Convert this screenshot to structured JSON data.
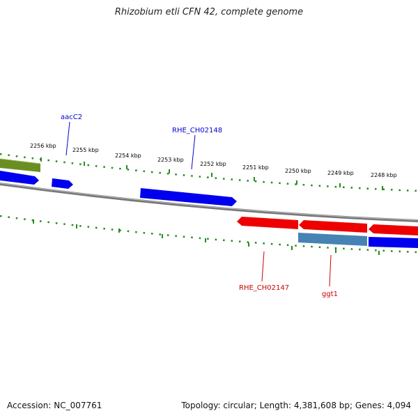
{
  "title": "Rhizobium etli CFN 42, complete genome",
  "footer": {
    "accession": "Accession: NC_007761",
    "stats": "Topology: circular; Length: 4,381,608 bp; Genes: 4,094"
  },
  "ticks": [
    {
      "label": "2256 kbp"
    },
    {
      "label": "2255 kbp"
    },
    {
      "label": "2254 kbp"
    },
    {
      "label": "2253 kbp"
    },
    {
      "label": "2252 kbp"
    },
    {
      "label": "2251 kbp"
    },
    {
      "label": "2250 kbp"
    },
    {
      "label": "2249 kbp"
    },
    {
      "label": "2248 kbp"
    }
  ],
  "gene_labels": [
    {
      "name": "aacC2",
      "color": "#0000cc"
    },
    {
      "name": "RHE_CH02148",
      "color": "#0000cc"
    },
    {
      "name": "RHE_CH02147",
      "color": "#cc0000"
    },
    {
      "name": "ggt1",
      "color": "#cc0000"
    }
  ],
  "colors": {
    "forward_gene": "#0000ee",
    "reverse_gene": "#ee0000",
    "other_feature": "#6b8e23",
    "pseudo_gene": "#4682b4",
    "backbone": "#808080",
    "tick": "#228b22"
  }
}
